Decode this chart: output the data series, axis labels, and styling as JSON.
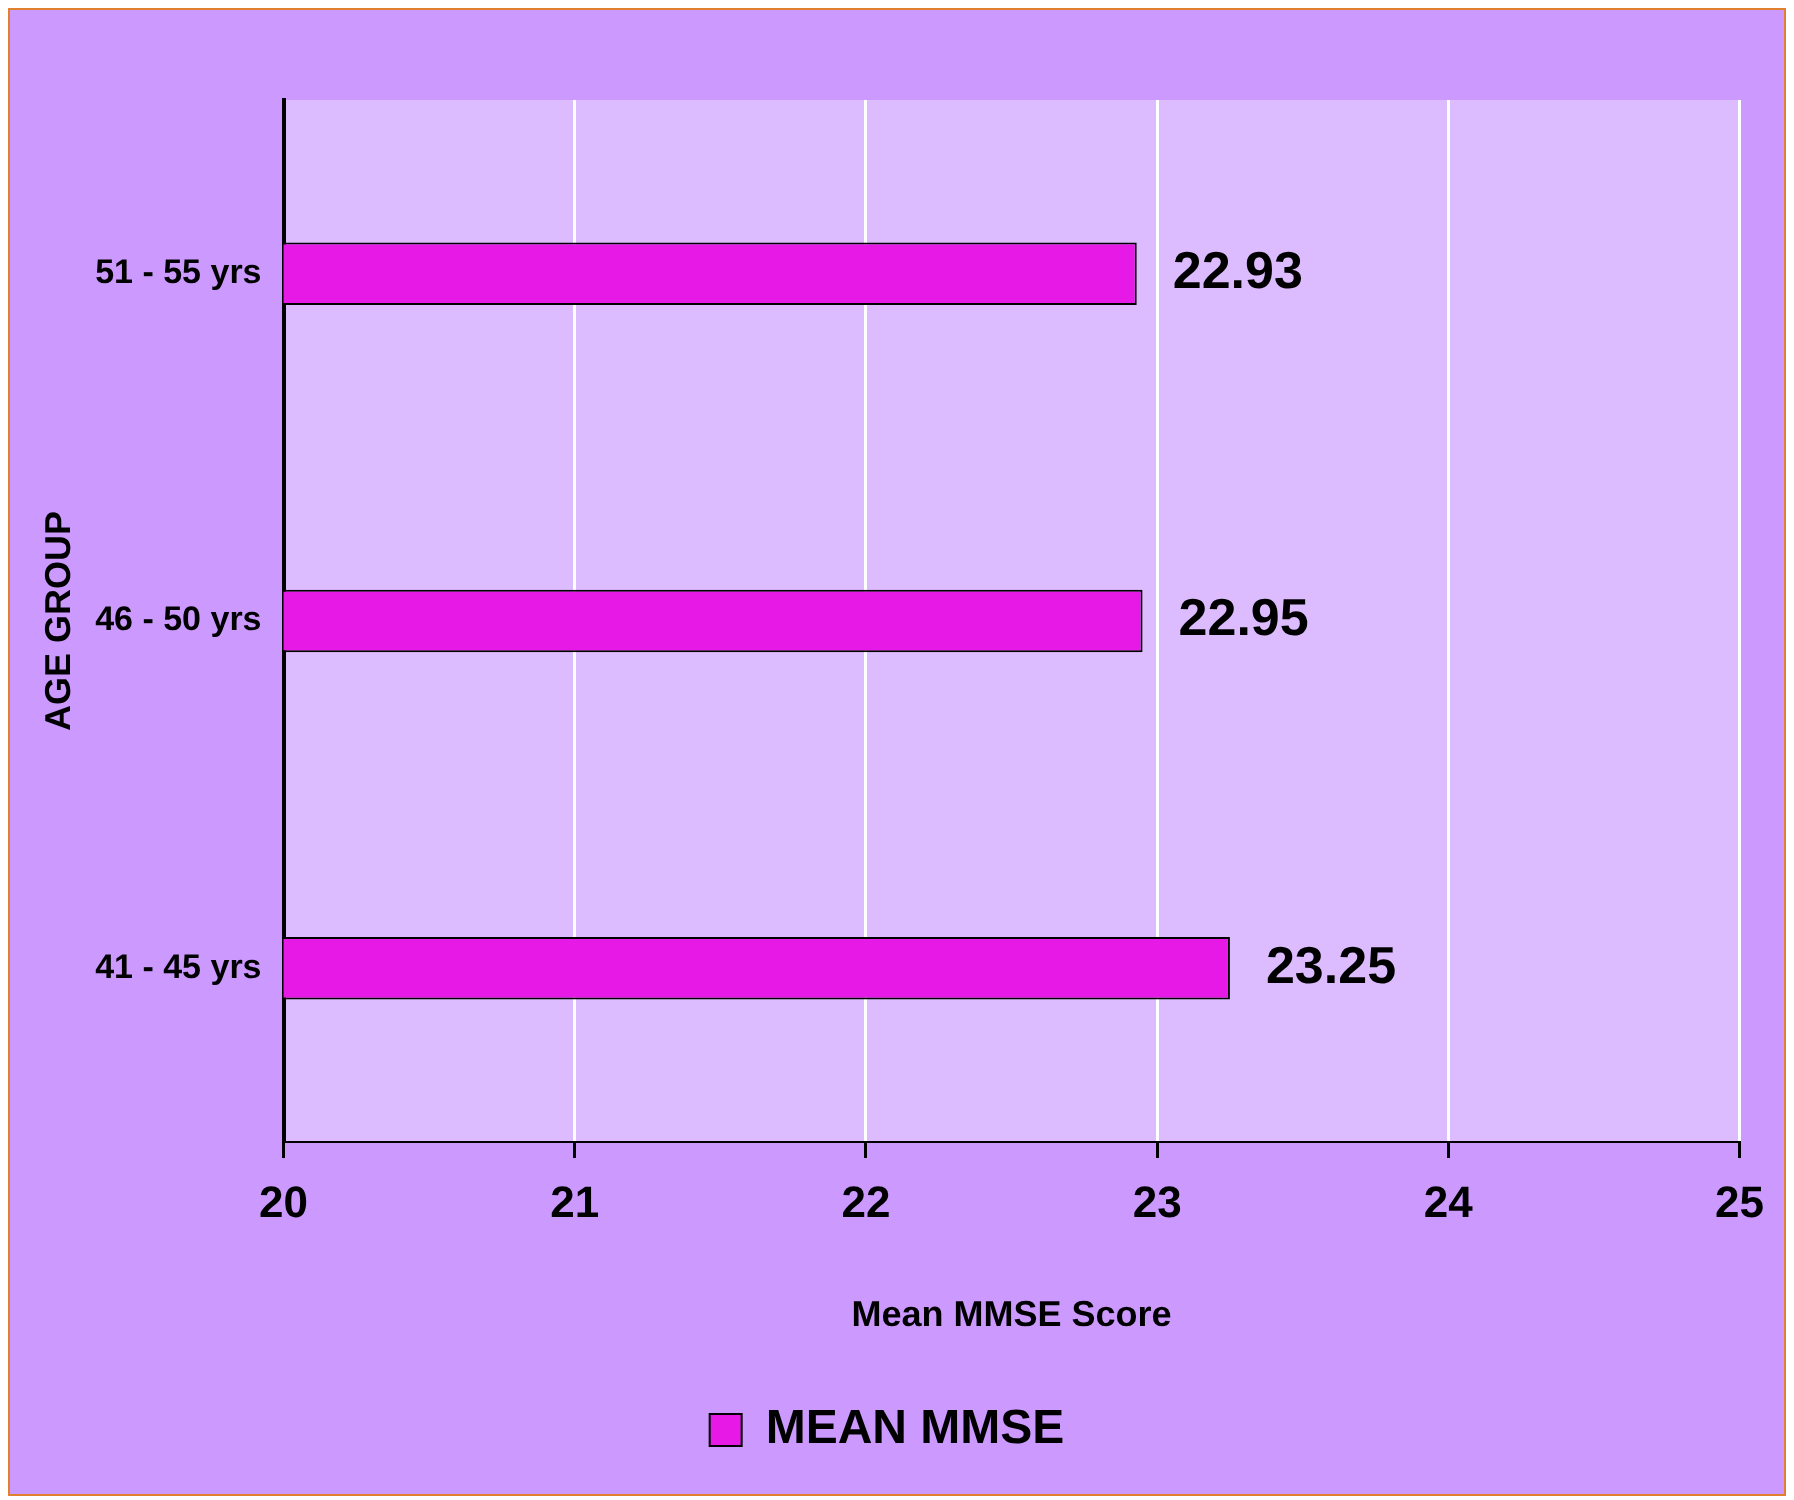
{
  "chart_data": {
    "type": "bar",
    "orientation": "horizontal",
    "xlabel": "Mean MMSE Score",
    "ylabel": "AGE GROUP",
    "categories": [
      "51 - 55 yrs",
      "46 - 50 yrs",
      "41 - 45 yrs"
    ],
    "series": [
      {
        "name": "MEAN MMSE",
        "color": "#e619e6",
        "values": [
          22.93,
          22.95,
          23.25
        ]
      }
    ],
    "xlim": [
      20,
      25
    ],
    "xticks": [
      20,
      21,
      22,
      23,
      24,
      25
    ],
    "grid": "x",
    "legend": "bottom",
    "data_labels": true
  }
}
